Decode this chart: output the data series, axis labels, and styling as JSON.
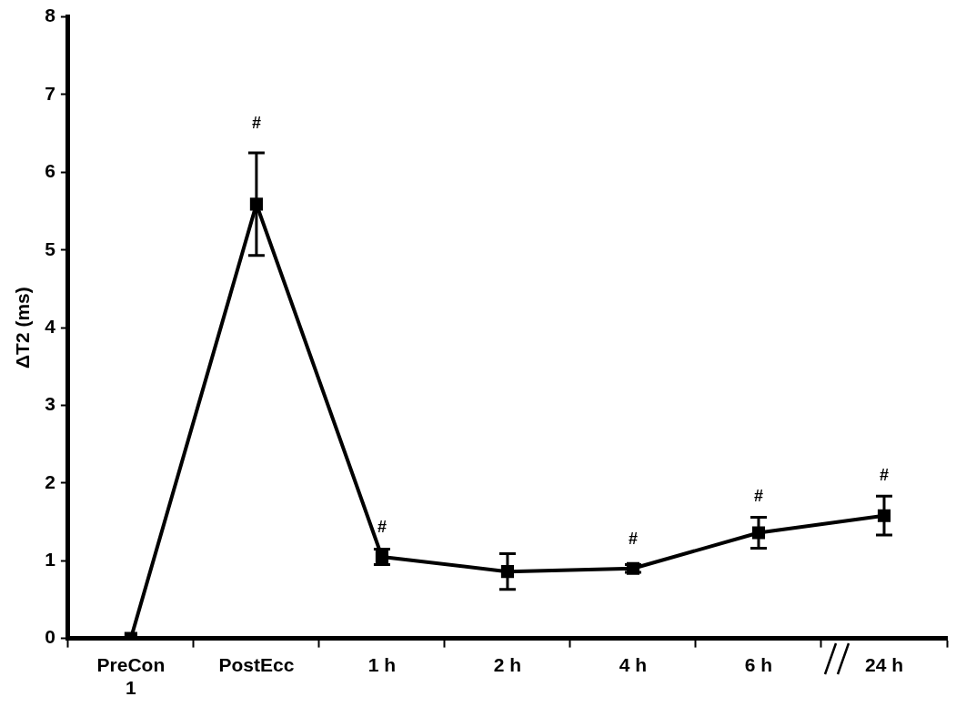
{
  "chart_data": {
    "type": "line",
    "ylabel": "ΔT2 (ms)",
    "categories": [
      "PreCon 1",
      "PostEcc",
      "1 h",
      "2 h",
      "4 h",
      "6 h",
      "24 h"
    ],
    "series": [
      {
        "color": "#000000",
        "values": [
          0,
          5.59,
          1.05,
          0.86,
          0.9,
          1.36,
          1.58
        ],
        "errors": [
          null,
          0.66,
          0.1,
          0.23,
          0.05,
          0.2,
          0.25
        ]
      }
    ],
    "ylim": [
      0,
      8
    ],
    "yticks": [
      0,
      1,
      2,
      3,
      4,
      5,
      6,
      7,
      8
    ],
    "grid": false,
    "legend": false,
    "marker": "square",
    "line_style": "solid",
    "annotations": [
      {
        "text": "#",
        "x": "PostEcc",
        "y": 6.25
      },
      {
        "text": "#",
        "x": "1 h",
        "y": 1.05
      },
      {
        "text": "#",
        "x": "4 h",
        "y": 0.9
      },
      {
        "text": "#",
        "x": "6 h",
        "y": 1.36
      },
      {
        "text": "#",
        "x": "24 h",
        "y": 1.58
      }
    ]
  }
}
